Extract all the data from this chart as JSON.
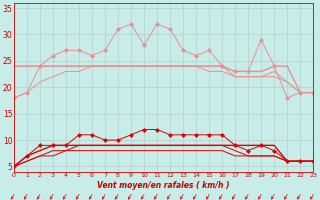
{
  "background_color": "#c8ece8",
  "grid_color": "#b0d0cc",
  "x": [
    0,
    1,
    2,
    3,
    4,
    5,
    6,
    7,
    8,
    9,
    10,
    11,
    12,
    13,
    14,
    15,
    16,
    17,
    18,
    19,
    20,
    21,
    22,
    23
  ],
  "upper_marked": [
    18,
    19,
    24,
    26,
    27,
    27,
    26,
    27,
    31,
    32,
    28,
    32,
    31,
    27,
    26,
    27,
    24,
    23,
    23,
    29,
    24,
    18,
    19,
    19
  ],
  "upper_flat1": [
    24,
    24,
    24,
    24,
    24,
    24,
    24,
    24,
    24,
    24,
    24,
    24,
    24,
    24,
    24,
    24,
    24,
    23,
    23,
    23,
    24,
    24,
    19,
    19
  ],
  "upper_flat2": [
    24,
    24,
    24,
    24,
    24,
    24,
    24,
    24,
    24,
    24,
    24,
    24,
    24,
    24,
    24,
    24,
    24,
    22,
    22,
    22,
    23,
    21,
    19,
    19
  ],
  "upper_diag": [
    18,
    19,
    21,
    22,
    23,
    23,
    24,
    24,
    24,
    24,
    24,
    24,
    24,
    24,
    24,
    23,
    23,
    22,
    22,
    22,
    22,
    21,
    19,
    19
  ],
  "lower_marked": [
    5,
    7,
    9,
    9,
    9,
    11,
    11,
    10,
    10,
    11,
    12,
    12,
    11,
    11,
    11,
    11,
    11,
    9,
    8,
    9,
    8,
    6,
    6,
    6
  ],
  "lower_flat1": [
    5,
    7,
    8,
    9,
    9,
    9,
    9,
    9,
    9,
    9,
    9,
    9,
    9,
    9,
    9,
    9,
    9,
    9,
    9,
    9,
    9,
    6,
    6,
    6
  ],
  "lower_flat2": [
    5,
    6,
    7,
    8,
    8,
    9,
    9,
    9,
    9,
    9,
    9,
    9,
    9,
    9,
    9,
    9,
    9,
    8,
    7,
    7,
    7,
    6,
    6,
    6
  ],
  "lower_diag": [
    5,
    6,
    7,
    7,
    8,
    8,
    8,
    8,
    8,
    8,
    8,
    8,
    8,
    8,
    8,
    8,
    8,
    7,
    7,
    7,
    7,
    6,
    6,
    6
  ],
  "upper_color": "#e89090",
  "lower_color": "#dd0000",
  "xlabel": "Vent moyen/en rafales ( km/h )",
  "ylim": [
    4,
    36
  ],
  "xlim": [
    0,
    23
  ],
  "yticks": [
    5,
    10,
    15,
    20,
    25,
    30,
    35
  ],
  "xticks": [
    0,
    1,
    2,
    3,
    4,
    5,
    6,
    7,
    8,
    9,
    10,
    11,
    12,
    13,
    14,
    15,
    16,
    17,
    18,
    19,
    20,
    21,
    22,
    23
  ]
}
